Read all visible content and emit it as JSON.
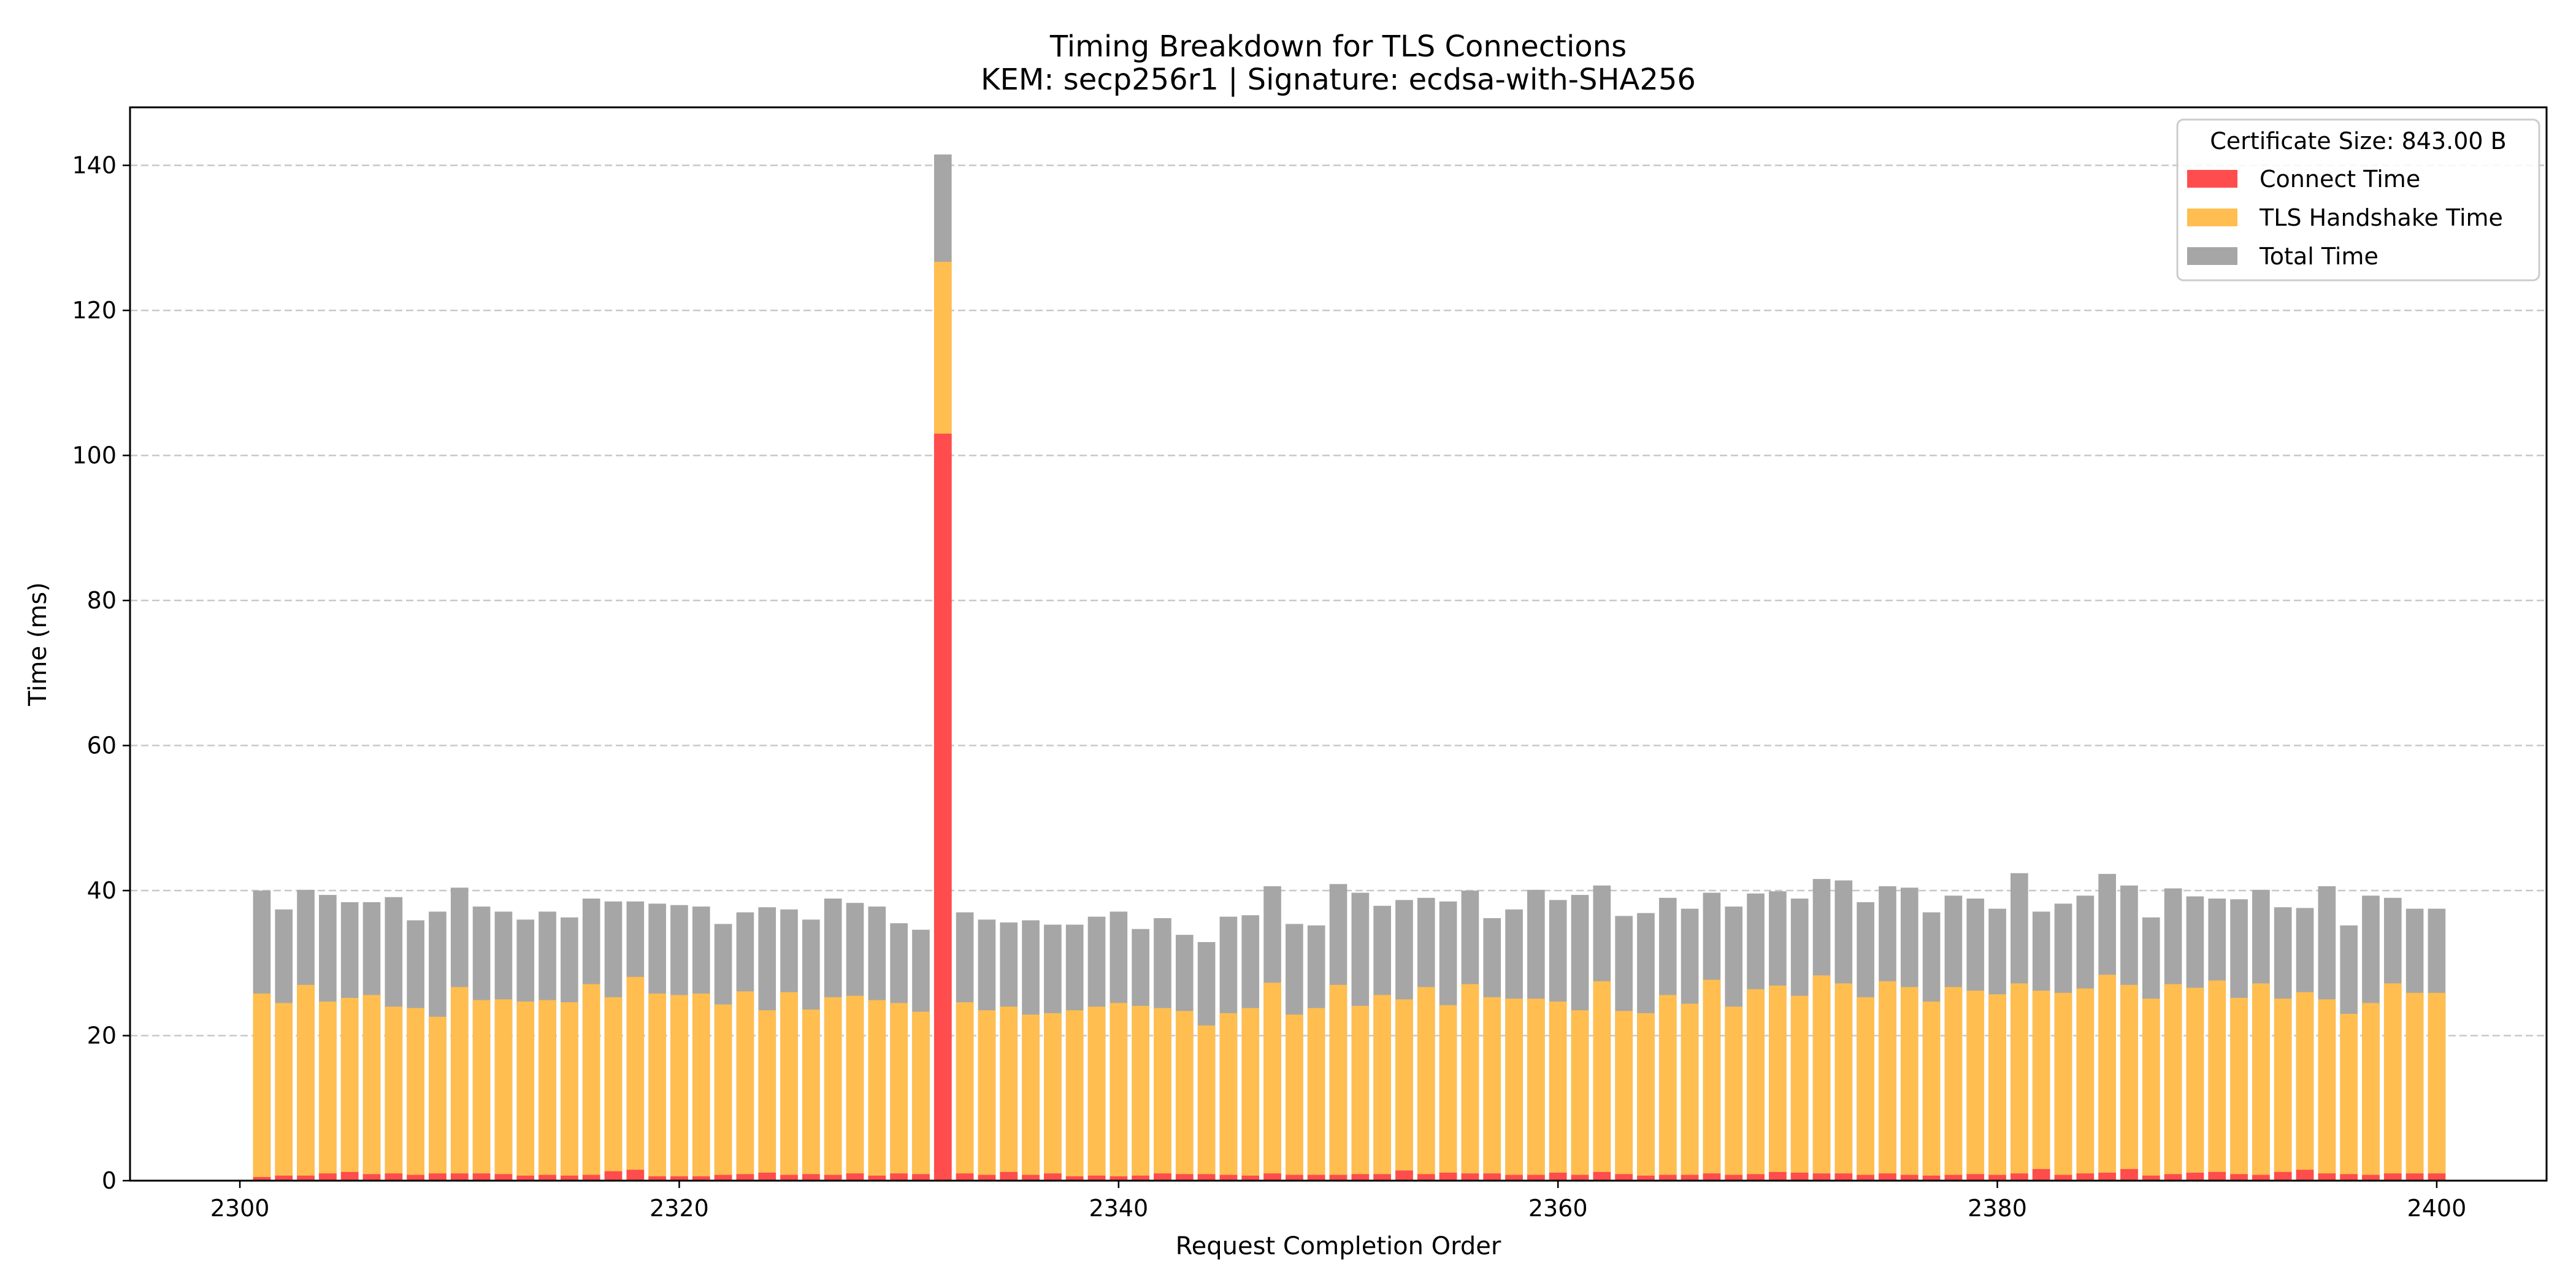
{
  "chart_data": {
    "type": "bar",
    "stacked": "overlay",
    "title": "Timing Breakdown for TLS Connections",
    "subtitle": "KEM: secp256r1 | Signature: ecdsa-with-SHA256",
    "xlabel": "Request Completion Order",
    "ylabel": "Time (ms)",
    "xlim": [
      2295,
      2405
    ],
    "ylim": [
      0,
      148
    ],
    "xticks": [
      2300,
      2320,
      2340,
      2360,
      2380,
      2400
    ],
    "yticks": [
      0,
      20,
      40,
      60,
      80,
      100,
      120,
      140
    ],
    "grid": "y-dashed",
    "legend": {
      "placement": "top-right",
      "title": "Certificate Size: 843.00 B",
      "entries": [
        "Connect Time",
        "TLS Handshake Time",
        "Total Time"
      ]
    },
    "colors": {
      "connect": "#ff4c4c",
      "handshake": "#ffbe4f",
      "total": "#a6a6a6"
    },
    "x_start": 2301,
    "series": [
      {
        "name": "Connect Time",
        "key": "connect",
        "values": [
          0.5,
          0.7,
          0.7,
          1.0,
          1.2,
          0.9,
          1.0,
          0.8,
          1.0,
          1.0,
          1.0,
          0.9,
          0.7,
          0.8,
          0.7,
          0.8,
          1.3,
          1.5,
          0.6,
          0.6,
          0.6,
          0.8,
          0.9,
          1.1,
          0.8,
          0.9,
          0.8,
          1.0,
          0.7,
          1.0,
          0.9,
          103.0,
          1.0,
          0.8,
          1.2,
          0.8,
          1.0,
          0.6,
          0.7,
          0.6,
          0.7,
          1.0,
          0.9,
          0.9,
          0.8,
          0.7,
          1.0,
          0.8,
          0.8,
          0.8,
          0.9,
          0.9,
          1.4,
          0.9,
          1.1,
          1.0,
          1.0,
          0.8,
          0.8,
          1.1,
          0.8,
          1.2,
          0.9,
          0.7,
          0.8,
          0.8,
          1.0,
          0.8,
          0.9,
          1.2,
          1.1,
          1.0,
          1.0,
          0.8,
          1.0,
          0.8,
          0.7,
          0.8,
          0.9,
          0.8,
          1.0,
          1.6,
          0.8,
          1.0,
          1.1,
          1.6,
          0.7,
          0.9,
          1.1,
          1.2,
          0.9,
          0.8,
          1.2,
          1.5,
          1.0,
          0.9,
          0.8,
          1.0,
          1.0,
          1.0
        ]
      },
      {
        "name": "TLS Handshake Time",
        "key": "handshake",
        "values": [
          25.8,
          24.5,
          27.0,
          24.7,
          25.2,
          25.6,
          24.0,
          23.8,
          22.6,
          26.7,
          24.9,
          25.0,
          24.7,
          24.9,
          24.6,
          27.1,
          25.3,
          28.1,
          25.8,
          25.6,
          25.8,
          24.3,
          26.1,
          23.5,
          26.0,
          23.6,
          25.3,
          25.5,
          24.9,
          24.5,
          23.3,
          126.7,
          24.6,
          23.5,
          24.0,
          22.9,
          23.1,
          23.5,
          24.0,
          24.5,
          24.1,
          23.8,
          23.4,
          21.4,
          23.1,
          23.8,
          27.3,
          22.9,
          23.8,
          27.0,
          24.1,
          25.6,
          25.0,
          26.7,
          24.2,
          27.1,
          25.3,
          25.1,
          25.1,
          24.7,
          23.5,
          27.5,
          23.4,
          23.1,
          25.6,
          24.4,
          27.7,
          24.0,
          26.4,
          26.9,
          25.5,
          28.3,
          27.2,
          25.3,
          27.5,
          26.7,
          24.7,
          26.7,
          26.2,
          25.7,
          27.2,
          26.2,
          25.9,
          26.5,
          28.4,
          27.0,
          25.1,
          27.1,
          26.6,
          27.6,
          25.2,
          27.2,
          25.1,
          26.0,
          25.0,
          23.0,
          24.5,
          27.2,
          25.9,
          25.9
        ]
      },
      {
        "name": "Total Time",
        "key": "total",
        "values": [
          40.0,
          37.4,
          40.1,
          39.4,
          38.4,
          38.4,
          39.1,
          35.9,
          37.1,
          40.4,
          37.8,
          37.1,
          36.0,
          37.1,
          36.3,
          38.9,
          38.5,
          38.5,
          38.2,
          38.0,
          37.8,
          35.4,
          37.0,
          37.7,
          37.4,
          36.0,
          38.9,
          38.3,
          37.8,
          35.5,
          34.6,
          141.5,
          37.0,
          36.0,
          35.6,
          35.9,
          35.3,
          35.3,
          36.4,
          37.1,
          34.7,
          36.2,
          33.9,
          32.9,
          36.4,
          36.6,
          40.6,
          35.4,
          35.2,
          40.9,
          39.7,
          37.9,
          38.7,
          39.0,
          38.5,
          40.0,
          36.2,
          37.4,
          40.1,
          38.7,
          39.4,
          40.7,
          36.5,
          36.9,
          39.0,
          37.5,
          39.7,
          37.8,
          39.6,
          39.9,
          38.9,
          41.6,
          41.4,
          38.4,
          40.6,
          40.4,
          37.0,
          39.3,
          38.9,
          37.5,
          42.4,
          37.1,
          38.2,
          39.3,
          42.3,
          40.7,
          36.3,
          40.3,
          39.2,
          38.9,
          38.8,
          40.1,
          37.7,
          37.6,
          40.6,
          35.2,
          39.3,
          39.0,
          37.5,
          37.5
        ]
      }
    ]
  }
}
